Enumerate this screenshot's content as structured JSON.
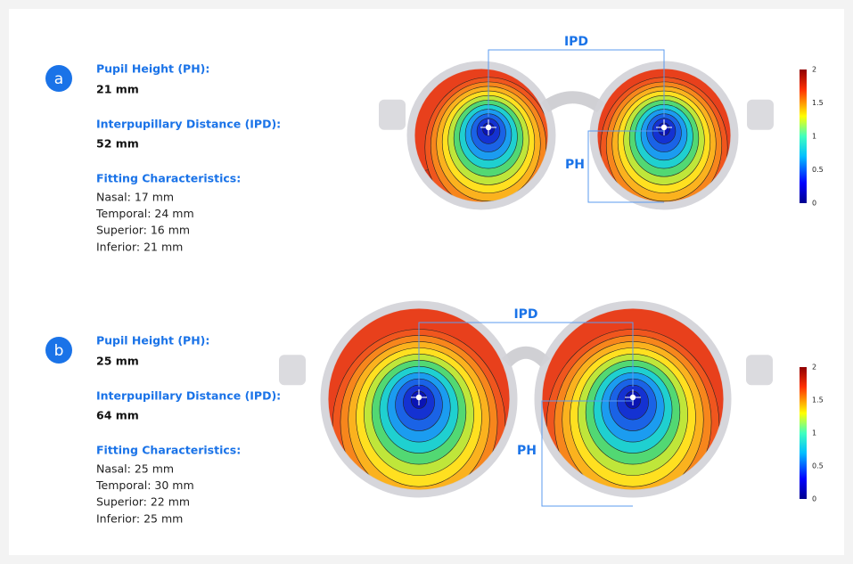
{
  "panels": [
    {
      "label": "a",
      "pupil_height": {
        "title": "Pupil Height (PH):",
        "value": "21 mm"
      },
      "ipd": {
        "title": "Interpupillary Distance (IPD):",
        "value": "52 mm"
      },
      "fitting": {
        "title": "Fitting Characteristics:",
        "items": [
          "Nasal: 17 mm",
          "Temporal: 24 mm",
          "Superior: 16 mm",
          "Inferior: 21 mm"
        ]
      },
      "annotations": {
        "ipd": "IPD",
        "ph": "PH"
      },
      "colorbar_ticks": [
        "2",
        "1.5",
        "1",
        "0.5",
        "0"
      ]
    },
    {
      "label": "b",
      "pupil_height": {
        "title": "Pupil Height (PH):",
        "value": "25 mm"
      },
      "ipd": {
        "title": "Interpupillary Distance (IPD):",
        "value": "64 mm"
      },
      "fitting": {
        "title": "Fitting Characteristics:",
        "items": [
          "Nasal: 25 mm",
          "Temporal: 30 mm",
          "Superior: 22 mm",
          "Inferior: 25 mm"
        ]
      },
      "annotations": {
        "ipd": "IPD",
        "ph": "PH"
      },
      "colorbar_ticks": [
        "2",
        "1.5",
        "1",
        "0.5",
        "0"
      ]
    }
  ]
}
